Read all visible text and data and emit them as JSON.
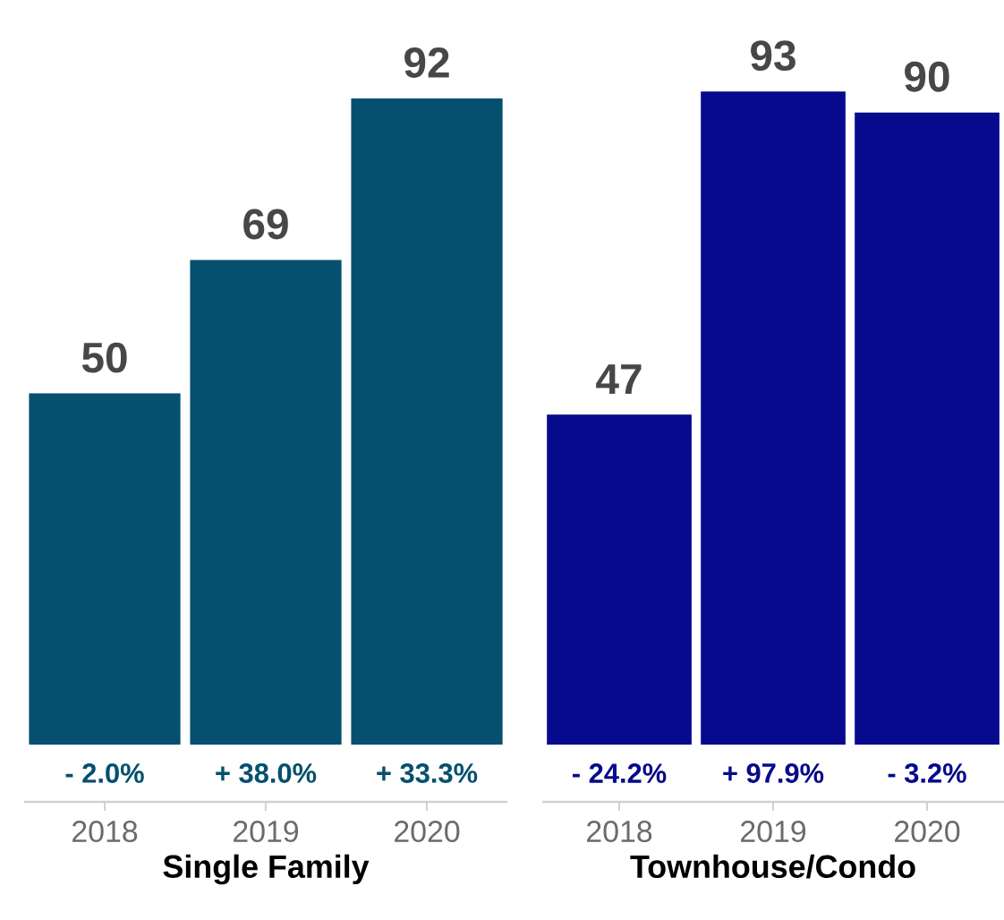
{
  "chart_data": [
    {
      "type": "bar",
      "categories": [
        "2018",
        "2019",
        "2020"
      ],
      "values": [
        50,
        69,
        92
      ],
      "color": "#05506e",
      "data_labels": true,
      "xlabel": "Single Family",
      "annotations": [
        "- 2.0%",
        "+ 38.0%",
        "+ 33.3%"
      ]
    },
    {
      "type": "bar",
      "categories": [
        "2018",
        "2019",
        "2020"
      ],
      "values": [
        47,
        93,
        90
      ],
      "color": "#070a8c",
      "data_labels": true,
      "xlabel": "Townhouse/Condo",
      "annotations": [
        "- 24.2%",
        "+ 97.9%",
        "- 3.2%"
      ]
    }
  ]
}
